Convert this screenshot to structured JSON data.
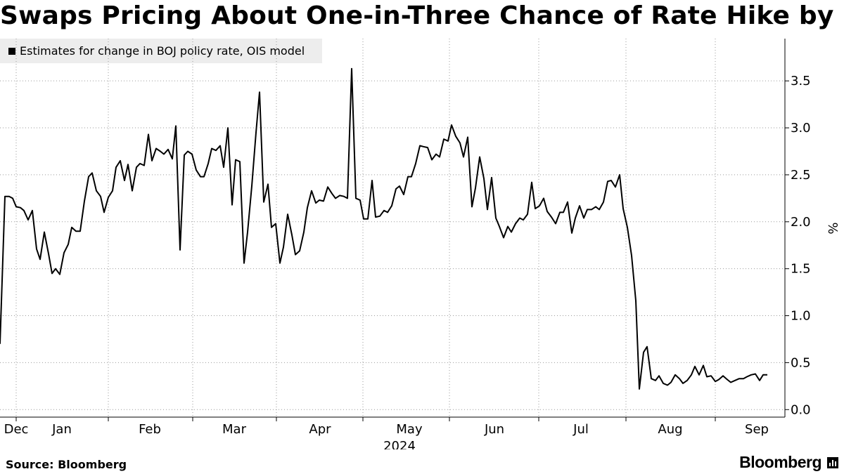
{
  "title": "Swaps Pricing About One-in-Three Chance of Rate Hike by Dec",
  "footer": {
    "source": "Source: Bloomberg",
    "brand": "Bloomberg"
  },
  "chart_data": {
    "type": "line",
    "legend": [
      "Estimates for change in BOJ policy rate, OIS model"
    ],
    "ylabel": "%",
    "ylim": [
      -0.08,
      3.95
    ],
    "y_ticks": [
      "0.0",
      "0.5",
      "1.0",
      "1.5",
      "2.0",
      "2.5",
      "3.0",
      "3.5"
    ],
    "y_tick_values": [
      0,
      0.5,
      1.0,
      1.5,
      2.0,
      2.5,
      3.0,
      3.5
    ],
    "xlim": [
      0,
      1110
    ],
    "x_tick_positions": [
      23,
      154,
      274,
      393,
      516,
      639,
      766,
      890,
      1017
    ],
    "x_labels": [
      {
        "label": "Dec",
        "at": 23
      },
      {
        "label": "Jan",
        "at": 88
      },
      {
        "label": "Feb",
        "at": 213
      },
      {
        "label": "Mar",
        "at": 333
      },
      {
        "label": "Apr",
        "at": 455
      },
      {
        "label": "May",
        "at": 582
      },
      {
        "label": "Jun",
        "at": 703
      },
      {
        "label": "Jul",
        "at": 826
      },
      {
        "label": "Aug",
        "at": 953
      },
      {
        "label": "Sep",
        "at": 1076
      }
    ],
    "year_label": {
      "label": "2024",
      "at": 568
    },
    "series": [
      {
        "name": "Estimates for change in BOJ policy rate, OIS model",
        "x": [
          0,
          7,
          13,
          18,
          23,
          29,
          34,
          40,
          46,
          52,
          57,
          63,
          69,
          74,
          79,
          85,
          91,
          97,
          102,
          108,
          114,
          120,
          126,
          131,
          137,
          143,
          148,
          154,
          160,
          165,
          171,
          177,
          182,
          188,
          194,
          199,
          205,
          211,
          216,
          222,
          228,
          233,
          239,
          245,
          250,
          256,
          262,
          267,
          273,
          279,
          285,
          290,
          296,
          301,
          307,
          313,
          318,
          324,
          330,
          335,
          341,
          347,
          352,
          358,
          364,
          369,
          375,
          381,
          386,
          392,
          398,
          403,
          409,
          415,
          420,
          426,
          432,
          437,
          443,
          449,
          454,
          460,
          466,
          472,
          477,
          483,
          489,
          494,
          500,
          506,
          512,
          517,
          523,
          529,
          534,
          540,
          546,
          551,
          557,
          563,
          568,
          574,
          580,
          585,
          591,
          597,
          602,
          608,
          614,
          620,
          625,
          631,
          637,
          642,
          648,
          654,
          659,
          665,
          671,
          676,
          682,
          688,
          693,
          699,
          705,
          710,
          716,
          722,
          727,
          733,
          739,
          744,
          750,
          756,
          761,
          767,
          773,
          778,
          784,
          790,
          796,
          801,
          807,
          813,
          818,
          824,
          830,
          835,
          841,
          847,
          852,
          858,
          864,
          869,
          875,
          881,
          886,
          892,
          898,
          904,
          909,
          915,
          920,
          926,
          932,
          937,
          943,
          949,
          954,
          960,
          966,
          971,
          977,
          983,
          988,
          994,
          1000,
          1005,
          1011,
          1017,
          1022,
          1028,
          1034,
          1039,
          1045,
          1051,
          1057,
          1062,
          1068,
          1074,
          1080,
          1085,
          1091
        ],
        "y": [
          0.7,
          2.27,
          2.27,
          2.25,
          2.16,
          2.15,
          2.12,
          2.02,
          2.12,
          1.71,
          1.6,
          1.89,
          1.66,
          1.45,
          1.5,
          1.44,
          1.67,
          1.76,
          1.94,
          1.9,
          1.9,
          2.22,
          2.48,
          2.52,
          2.33,
          2.27,
          2.1,
          2.26,
          2.33,
          2.58,
          2.65,
          2.44,
          2.61,
          2.33,
          2.58,
          2.62,
          2.6,
          2.93,
          2.65,
          2.78,
          2.75,
          2.72,
          2.77,
          2.67,
          3.02,
          1.7,
          2.71,
          2.75,
          2.72,
          2.55,
          2.48,
          2.48,
          2.62,
          2.78,
          2.76,
          2.81,
          2.58,
          3.0,
          2.18,
          2.66,
          2.64,
          1.56,
          1.89,
          2.38,
          2.95,
          3.38,
          2.21,
          2.4,
          1.94,
          1.98,
          1.56,
          1.73,
          2.08,
          1.86,
          1.65,
          1.69,
          1.89,
          2.15,
          2.33,
          2.2,
          2.23,
          2.22,
          2.37,
          2.3,
          2.25,
          2.28,
          2.27,
          2.25,
          3.63,
          2.25,
          2.23,
          2.03,
          2.03,
          2.44,
          2.05,
          2.06,
          2.12,
          2.1,
          2.17,
          2.35,
          2.38,
          2.29,
          2.48,
          2.48,
          2.62,
          2.81,
          2.8,
          2.79,
          2.66,
          2.72,
          2.69,
          2.88,
          2.86,
          3.03,
          2.91,
          2.84,
          2.69,
          2.9,
          2.16,
          2.36,
          2.69,
          2.46,
          2.13,
          2.47,
          2.04,
          1.95,
          1.83,
          1.95,
          1.89,
          1.98,
          2.04,
          2.02,
          2.08,
          2.42,
          2.14,
          2.17,
          2.25,
          2.11,
          2.05,
          1.98,
          2.1,
          2.1,
          2.21,
          1.88,
          2.04,
          2.17,
          2.04,
          2.13,
          2.13,
          2.16,
          2.13,
          2.21,
          2.43,
          2.44,
          2.37,
          2.5,
          2.14,
          1.94,
          1.64,
          1.16,
          0.22,
          0.61,
          0.67,
          0.33,
          0.31,
          0.36,
          0.28,
          0.26,
          0.29,
          0.37,
          0.33,
          0.28,
          0.31,
          0.37,
          0.46,
          0.37,
          0.47,
          0.35,
          0.36,
          0.3,
          0.32,
          0.36,
          0.32,
          0.29,
          0.31,
          0.33,
          0.33,
          0.35,
          0.37,
          0.38,
          0.31,
          0.37,
          0.37
        ]
      }
    ]
  }
}
